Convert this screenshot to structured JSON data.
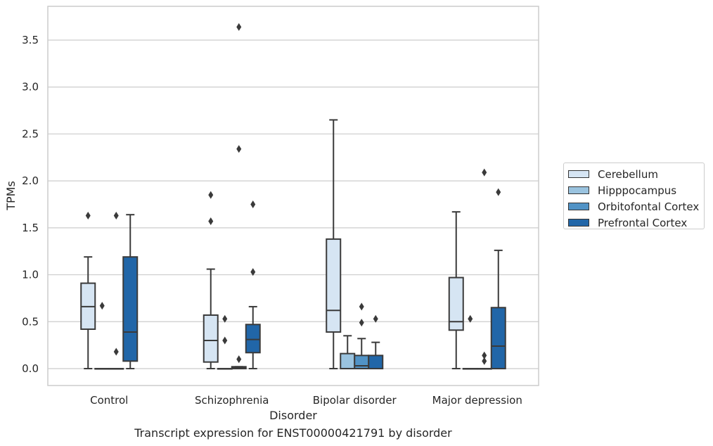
{
  "chart_data": {
    "type": "box",
    "xlabel": "Disorder",
    "ylabel": "TPMs",
    "caption": "Transcript expression for ENST00000421791 by disorder",
    "ylim": [
      -0.18,
      3.86
    ],
    "y_ticks": [
      "0.0",
      "0.5",
      "1.0",
      "1.5",
      "2.0",
      "2.5",
      "3.0",
      "3.5"
    ],
    "grid": true,
    "legend_position": "right",
    "categories": [
      "Control",
      "Schizophrenia",
      "Bipolar disorder",
      "Major depression"
    ],
    "series": [
      {
        "name": "Cerebellum",
        "color": "#d6e5f3",
        "boxes": [
          {
            "min": 0.0,
            "q1": 0.42,
            "median": 0.66,
            "q3": 0.91,
            "max": 1.19,
            "outliers": [
              1.63
            ]
          },
          {
            "min": 0.0,
            "q1": 0.07,
            "median": 0.3,
            "q3": 0.57,
            "max": 1.06,
            "outliers": [
              1.57,
              1.85
            ]
          },
          {
            "min": 0.0,
            "q1": 0.39,
            "median": 0.62,
            "q3": 1.38,
            "max": 2.65,
            "outliers": []
          },
          {
            "min": 0.0,
            "q1": 0.41,
            "median": 0.5,
            "q3": 0.97,
            "max": 1.67,
            "outliers": []
          }
        ]
      },
      {
        "name": "Hipppocampus",
        "color": "#9ac3df",
        "boxes": [
          {
            "min": 0.0,
            "q1": 0.0,
            "median": 0.0,
            "q3": 0.0,
            "max": 0.0,
            "outliers": [
              0.67
            ]
          },
          {
            "min": 0.0,
            "q1": 0.0,
            "median": 0.0,
            "q3": 0.0,
            "max": 0.0,
            "outliers": [
              0.3,
              0.53
            ]
          },
          {
            "min": 0.0,
            "q1": 0.0,
            "median": 0.0,
            "q3": 0.16,
            "max": 0.35,
            "outliers": []
          },
          {
            "min": 0.0,
            "q1": 0.0,
            "median": 0.0,
            "q3": 0.0,
            "max": 0.0,
            "outliers": [
              0.53
            ]
          }
        ]
      },
      {
        "name": "Orbitofontal Cortex",
        "color": "#5193c6",
        "boxes": [
          {
            "min": 0.0,
            "q1": 0.0,
            "median": 0.0,
            "q3": 0.0,
            "max": 0.0,
            "outliers": [
              0.18,
              1.63
            ]
          },
          {
            "min": 0.0,
            "q1": 0.0,
            "median": 0.01,
            "q3": 0.02,
            "max": 0.02,
            "outliers": [
              0.1,
              2.34,
              3.64
            ]
          },
          {
            "min": 0.0,
            "q1": 0.0,
            "median": 0.03,
            "q3": 0.14,
            "max": 0.32,
            "outliers": [
              0.49,
              0.66
            ]
          },
          {
            "min": 0.0,
            "q1": 0.0,
            "median": 0.0,
            "q3": 0.0,
            "max": 0.0,
            "outliers": [
              0.08,
              0.14,
              2.09
            ]
          }
        ]
      },
      {
        "name": "Prefrontal Cortex",
        "color": "#2166a8",
        "boxes": [
          {
            "min": 0.0,
            "q1": 0.08,
            "median": 0.39,
            "q3": 1.19,
            "max": 1.64,
            "outliers": []
          },
          {
            "min": 0.0,
            "q1": 0.17,
            "median": 0.31,
            "q3": 0.47,
            "max": 0.66,
            "outliers": [
              1.03,
              1.75
            ]
          },
          {
            "min": 0.0,
            "q1": 0.0,
            "median": 0.0,
            "q3": 0.14,
            "max": 0.28,
            "outliers": [
              0.53
            ]
          },
          {
            "min": 0.0,
            "q1": 0.0,
            "median": 0.24,
            "q3": 0.65,
            "max": 1.26,
            "outliers": [
              1.88
            ]
          }
        ]
      }
    ]
  }
}
